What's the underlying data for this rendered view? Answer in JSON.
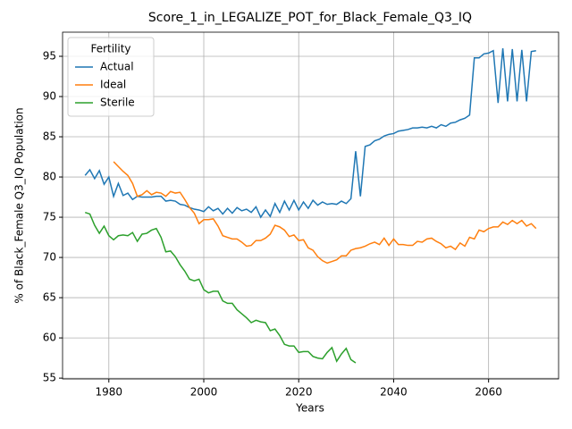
{
  "chart_data": {
    "type": "line",
    "title": "Score_1_in_LEGALIZE_POT_for_Black_Female_Q3_IQ",
    "xlabel": "Years",
    "ylabel": "% of Black_Female Q3_IQ Population",
    "legend_title": "Fertility",
    "legend": "upper left",
    "grid": true,
    "xlim": [
      1970.25,
      2074.75
    ],
    "xticks": [
      1980,
      2000,
      2020,
      2040,
      2060
    ],
    "ylim": [
      54.9,
      98
    ],
    "yticks": [
      55,
      60,
      65,
      70,
      75,
      80,
      85,
      90,
      95
    ],
    "x": [
      1975,
      1976,
      1977,
      1978,
      1979,
      1980,
      1981,
      1982,
      1983,
      1984,
      1985,
      1986,
      1987,
      1988,
      1989,
      1990,
      1991,
      1992,
      1993,
      1994,
      1995,
      1996,
      1997,
      1998,
      1999,
      2000,
      2001,
      2002,
      2003,
      2004,
      2005,
      2006,
      2007,
      2008,
      2009,
      2010,
      2011,
      2012,
      2013,
      2014,
      2015,
      2016,
      2017,
      2018,
      2019,
      2020,
      2021,
      2022,
      2023,
      2024,
      2025,
      2026,
      2027,
      2028,
      2029,
      2030,
      2031,
      2032,
      2033,
      2034,
      2035,
      2036,
      2037,
      2038,
      2039,
      2040,
      2041,
      2042,
      2043,
      2044,
      2045,
      2046,
      2047,
      2048,
      2049,
      2050,
      2051,
      2052,
      2053,
      2054,
      2055,
      2056,
      2057,
      2058,
      2059,
      2060,
      2061,
      2062,
      2063,
      2064,
      2065,
      2066,
      2067,
      2068,
      2069,
      2070
    ],
    "series": [
      {
        "name": "Actual",
        "color": "#1f77b4",
        "values": [
          80.2,
          80.9,
          79.8,
          80.8,
          79.1,
          80.0,
          77.6,
          79.2,
          77.7,
          78.0,
          77.2,
          77.6,
          77.5,
          77.5,
          77.5,
          77.6,
          77.6,
          77.0,
          77.1,
          77.0,
          76.6,
          76.5,
          76.2,
          76.0,
          75.9,
          75.7,
          76.3,
          75.8,
          76.1,
          75.4,
          76.1,
          75.5,
          76.2,
          75.8,
          76.0,
          75.6,
          76.3,
          75.0,
          75.9,
          75.1,
          76.7,
          75.6,
          77.0,
          75.9,
          77.1,
          75.9,
          76.9,
          76.1,
          77.1,
          76.5,
          76.9,
          76.6,
          76.7,
          76.6,
          77.0,
          76.7,
          77.3,
          83.2,
          77.6,
          83.8,
          84.0,
          84.5,
          84.7,
          85.1,
          85.3,
          85.4,
          85.7,
          85.8,
          85.9,
          86.1,
          86.1,
          86.2,
          86.1,
          86.3,
          86.1,
          86.5,
          86.3,
          86.7,
          86.8,
          87.1,
          87.3,
          87.7,
          94.8,
          94.8,
          95.3,
          95.4,
          95.7,
          89.2,
          96.0,
          89.4,
          95.9,
          89.4,
          95.8,
          89.4,
          95.6,
          95.7
        ]
      },
      {
        "name": "Ideal",
        "color": "#ff7f0e",
        "values": [
          null,
          null,
          null,
          null,
          null,
          null,
          81.9,
          81.3,
          80.7,
          80.2,
          79.2,
          77.6,
          77.8,
          78.3,
          77.8,
          78.1,
          78.0,
          77.6,
          78.2,
          78.0,
          78.1,
          77.2,
          76.2,
          75.5,
          74.2,
          74.7,
          74.7,
          74.8,
          73.9,
          72.7,
          72.5,
          72.3,
          72.3,
          71.9,
          71.4,
          71.5,
          72.1,
          72.1,
          72.4,
          72.9,
          74.0,
          73.8,
          73.4,
          72.6,
          72.8,
          72.1,
          72.2,
          71.2,
          70.9,
          70.1,
          69.6,
          69.3,
          69.5,
          69.7,
          70.2,
          70.2,
          70.9,
          71.1,
          71.2,
          71.4,
          71.7,
          71.9,
          71.6,
          72.4,
          71.5,
          72.3,
          71.6,
          71.6,
          71.5,
          71.5,
          72.0,
          71.9,
          72.3,
          72.4,
          72.0,
          71.7,
          71.2,
          71.4,
          71.0,
          71.8,
          71.4,
          72.5,
          72.3,
          73.4,
          73.2,
          73.6,
          73.8,
          73.8,
          74.4,
          74.1,
          74.6,
          74.2,
          74.6,
          73.9,
          74.2,
          73.6
        ]
      },
      {
        "name": "Sterile",
        "color": "#2ca02c",
        "values": [
          75.6,
          75.4,
          74.0,
          73.0,
          73.9,
          72.7,
          72.2,
          72.7,
          72.8,
          72.7,
          73.1,
          72.0,
          72.9,
          73.0,
          73.4,
          73.6,
          72.5,
          70.7,
          70.8,
          70.1,
          69.1,
          68.3,
          67.3,
          67.1,
          67.3,
          66.0,
          65.6,
          65.8,
          65.8,
          64.6,
          64.3,
          64.3,
          63.5,
          63.0,
          62.5,
          61.9,
          62.2,
          62.0,
          61.9,
          60.9,
          61.1,
          60.3,
          59.2,
          59.0,
          59.0,
          58.2,
          58.3,
          58.3,
          57.7,
          57.5,
          57.4,
          58.2,
          58.8,
          57.1,
          58.0,
          58.7,
          57.3,
          56.9,
          null,
          null,
          null,
          null,
          null,
          null,
          null,
          null,
          null,
          null,
          null,
          null,
          null,
          null,
          null,
          null,
          null,
          null,
          null,
          null,
          null,
          null,
          null,
          null,
          null,
          null,
          null,
          null,
          null,
          null,
          null,
          null,
          null,
          null,
          null,
          null,
          null,
          null
        ]
      }
    ]
  }
}
